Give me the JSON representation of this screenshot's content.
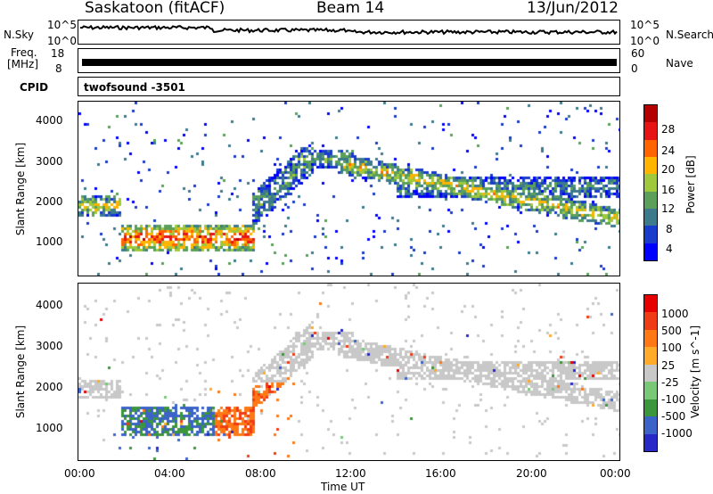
{
  "header": {
    "station": "Saskatoon (fitACF)",
    "beam": "Beam 14",
    "date": "13/Jun/2012"
  },
  "top_panels": {
    "nsky_label": "N.Sky",
    "nsky_ticks": [
      "10^5",
      "10^0"
    ],
    "nsearch_label": "N.Search",
    "nsearch_ticks": [
      "10^5",
      "10^0"
    ],
    "freq_label_1": "Freq.",
    "freq_label_2": "[MHz]",
    "freq_ticks": [
      "18",
      "8"
    ],
    "nave_label": "Nave",
    "nave_ticks": [
      "60",
      "0"
    ],
    "cpid_label": "CPID",
    "cpid_value": "twofsound  -3501"
  },
  "chart_data": [
    {
      "type": "heatmap",
      "name": "power",
      "ylabel": "Slant Range [km]",
      "yticks": [
        "4000",
        "3000",
        "2000",
        "1000"
      ],
      "ylim": [
        180,
        4500
      ],
      "colorbar_label": "Power [dB]",
      "colorbar_ticks": [
        "28",
        "24",
        "20",
        "16",
        "12",
        "8",
        "4"
      ],
      "colorbar_colors": [
        "#0000ff",
        "#1a3ccc",
        "#3c7a8c",
        "#5aa05a",
        "#a0c83c",
        "#ffb400",
        "#ff6400",
        "#e61414",
        "#b40000"
      ],
      "bands": [
        {
          "t0": 0,
          "t1": 1.8,
          "r_center": 1950,
          "r_width": 500,
          "intensity": 0.55
        },
        {
          "t0": 1.8,
          "t1": 7.8,
          "r_center": 1150,
          "r_width": 700,
          "intensity": 0.8
        },
        {
          "t0": 7.6,
          "t1": 10.4,
          "r_center": 2600,
          "r_width": 900,
          "intensity": 0.35
        },
        {
          "t0": 9.5,
          "t1": 12.2,
          "r_center": 3100,
          "r_width": 450,
          "intensity": 0.4
        },
        {
          "t0": 11.5,
          "t1": 24,
          "r_center": 1700,
          "r_width": 500,
          "intensity": 0.55
        },
        {
          "t0": 14,
          "t1": 24,
          "r_center": 2400,
          "r_width": 500,
          "intensity": 0.3
        }
      ]
    },
    {
      "type": "heatmap",
      "name": "velocity",
      "ylabel": "Slant Range [km]",
      "yticks": [
        "4000",
        "3000",
        "2000",
        "1000"
      ],
      "ylim": [
        180,
        4500
      ],
      "colorbar_label": "Velocity [m s^-1]",
      "colorbar_ticks": [
        "1000",
        "500",
        "100",
        "25",
        "-25",
        "-100",
        "-500",
        "-1000"
      ],
      "colorbar_colors": [
        "#2828c8",
        "#3c64c8",
        "#3c963c",
        "#78c878",
        "#c8c8c8",
        "#ffaa28",
        "#ff7814",
        "#f03c14",
        "#e60000"
      ],
      "xlabel": "Time UT",
      "xticks": [
        "00:00",
        "04:00",
        "08:00",
        "12:00",
        "16:00",
        "20:00",
        "00:00"
      ],
      "xlim_hours": [
        0,
        24
      ]
    }
  ]
}
